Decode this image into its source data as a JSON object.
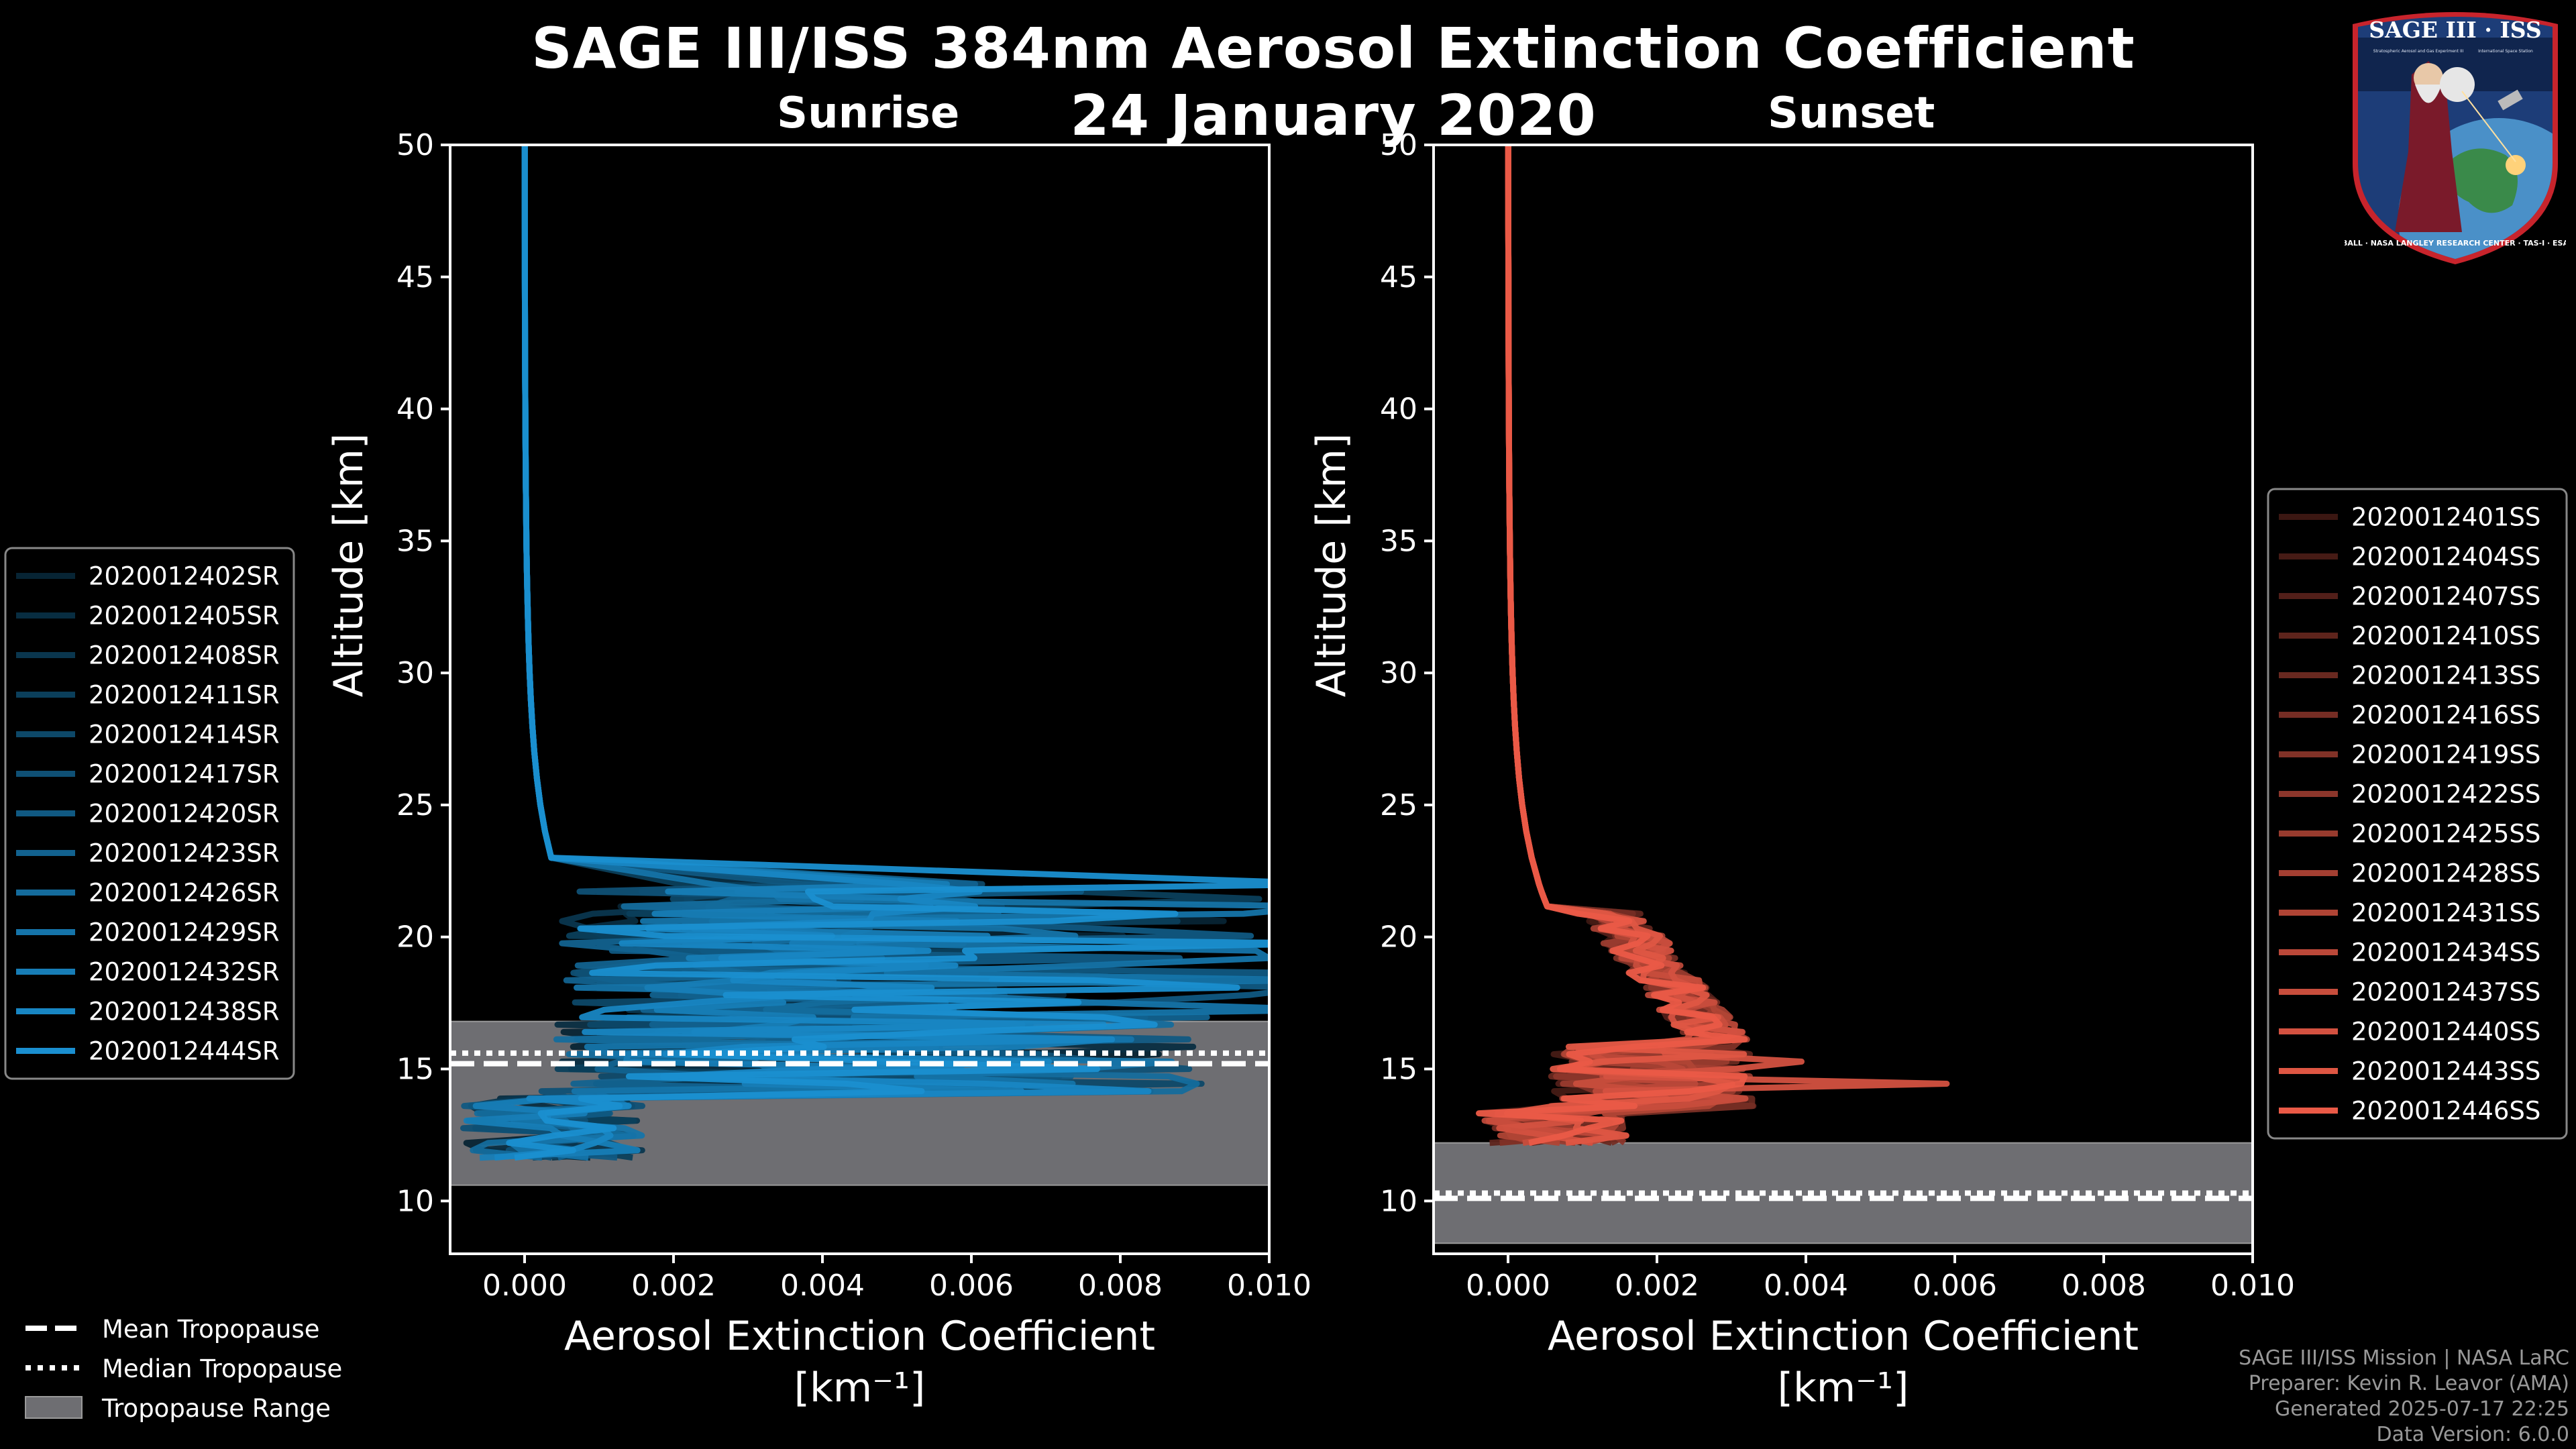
{
  "title_line1": "SAGE III/ISS 384nm Aerosol Extinction Coefficient",
  "title_line2": "24 January 2020",
  "credits": {
    "line1": "SAGE III/ISS Mission | NASA LaRC",
    "line2": "Preparer: Kevin R. Leavor (AMA)",
    "line3": "Generated 2025-07-17 22:25",
    "line4": "Data Version: 6.0.0"
  },
  "logo": {
    "text": "SAGE III · ISS",
    "ring_text": "BALL · NASA LANGLEY RESEARCH CENTER · TAS-I · ESA",
    "sub_left": "Stratospheric Aerosol and Gas Experiment III",
    "sub_right": "International Space Station"
  },
  "bottom_legend": [
    {
      "label": "Mean Tropopause",
      "style": "dashed"
    },
    {
      "label": "Median Tropopause",
      "style": "dotted"
    },
    {
      "label": "Tropopause Range",
      "style": "patch"
    }
  ],
  "colors": {
    "sunrise": "#1a8fd0",
    "sunset": "#ea5a47",
    "tropopause_range": "#6e6e72",
    "background": "#000000"
  },
  "chart_data": [
    {
      "type": "line",
      "panel": "sunrise",
      "title": "Sunrise",
      "xlabel": "Aerosol Extinction Coefficient",
      "xlabel_units": "[km⁻¹]",
      "ylabel": "Altitude [km]",
      "xlim": [
        -0.001,
        0.01
      ],
      "ylim": [
        8,
        50
      ],
      "xticks": [
        "0.000",
        "0.002",
        "0.004",
        "0.006",
        "0.008",
        "0.010"
      ],
      "xtick_values": [
        0,
        0.002,
        0.004,
        0.006,
        0.008,
        0.01
      ],
      "yticks": [
        10,
        15,
        20,
        25,
        30,
        35,
        40,
        45,
        50
      ],
      "tropopause": {
        "mean": 15.2,
        "median": 15.6,
        "range": [
          10.6,
          16.8
        ]
      },
      "series": [
        {
          "name": "2020012402SR"
        },
        {
          "name": "2020012405SR"
        },
        {
          "name": "2020012408SR"
        },
        {
          "name": "2020012411SR"
        },
        {
          "name": "2020012414SR"
        },
        {
          "name": "2020012417SR"
        },
        {
          "name": "2020012420SR"
        },
        {
          "name": "2020012423SR"
        },
        {
          "name": "2020012426SR"
        },
        {
          "name": "2020012429SR"
        },
        {
          "name": "2020012432SR"
        },
        {
          "name": "2020012438SR"
        },
        {
          "name": "2020012444SR"
        }
      ],
      "legend_location": "left-outside"
    },
    {
      "type": "line",
      "panel": "sunset",
      "title": "Sunset",
      "xlabel": "Aerosol Extinction Coefficient",
      "xlabel_units": "[km⁻¹]",
      "ylabel": "Altitude [km]",
      "xlim": [
        -0.001,
        0.01
      ],
      "ylim": [
        8,
        50
      ],
      "xticks": [
        "0.000",
        "0.002",
        "0.004",
        "0.006",
        "0.008",
        "0.010"
      ],
      "xtick_values": [
        0,
        0.002,
        0.004,
        0.006,
        0.008,
        0.01
      ],
      "yticks": [
        10,
        15,
        20,
        25,
        30,
        35,
        40,
        45,
        50
      ],
      "tropopause": {
        "mean": 10.1,
        "median": 10.3,
        "range": [
          8.4,
          12.2
        ]
      },
      "series": [
        {
          "name": "2020012401SS"
        },
        {
          "name": "2020012404SS"
        },
        {
          "name": "2020012407SS"
        },
        {
          "name": "2020012410SS"
        },
        {
          "name": "2020012413SS"
        },
        {
          "name": "2020012416SS"
        },
        {
          "name": "2020012419SS"
        },
        {
          "name": "2020012422SS"
        },
        {
          "name": "2020012425SS"
        },
        {
          "name": "2020012428SS"
        },
        {
          "name": "2020012431SS"
        },
        {
          "name": "2020012434SS"
        },
        {
          "name": "2020012437SS"
        },
        {
          "name": "2020012440SS"
        },
        {
          "name": "2020012443SS"
        },
        {
          "name": "2020012446SS"
        }
      ],
      "legend_location": "right-outside"
    }
  ]
}
